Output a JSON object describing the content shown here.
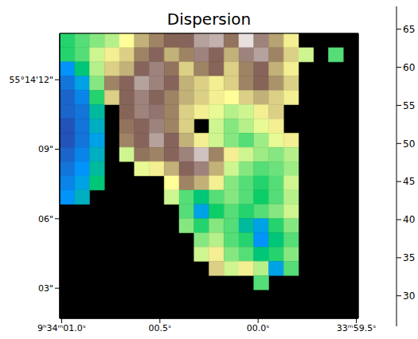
{
  "chart_data": {
    "type": "heatmap",
    "title": "Dispersion",
    "xlim": [
      1.01,
      -0.51
    ],
    "xticks": [
      {
        "value": 1.0,
        "label": "9ʰ34ᵐ01.0ˢ"
      },
      {
        "value": 0.5,
        "label": "00.5ˢ"
      },
      {
        "value": 0.0,
        "label": "00.0ˢ"
      },
      {
        "value": -0.5,
        "label": "33ᵐ59.5ˢ"
      }
    ],
    "ylim": [
      1.7,
      14.0
    ],
    "yticks": [
      {
        "value": 12,
        "label": "55°14'12\""
      },
      {
        "value": 9,
        "label": "09\""
      },
      {
        "value": 6,
        "label": "06\""
      },
      {
        "value": 3,
        "label": "03\""
      }
    ],
    "cells": [
      [
        38,
        40,
        42,
        44,
        47,
        52,
        55,
        57,
        58,
        62,
        63,
        56,
        66,
        60,
        53,
        48,
        null,
        null,
        null,
        null
      ],
      [
        38,
        40,
        45,
        48,
        50,
        55,
        58,
        52,
        55,
        60,
        58,
        52,
        60,
        62,
        55,
        50,
        45,
        null,
        40,
        null
      ],
      [
        32,
        36,
        44,
        50,
        52,
        58,
        60,
        56,
        50,
        55,
        57,
        50,
        55,
        58,
        52,
        48,
        null,
        null,
        null,
        null
      ],
      [
        30,
        33,
        42,
        55,
        58,
        62,
        60,
        58,
        52,
        50,
        48,
        50,
        55,
        57,
        54,
        50,
        null,
        null,
        null,
        null
      ],
      [
        29,
        31,
        38,
        50,
        58,
        60,
        58,
        55,
        52,
        50,
        48,
        47,
        50,
        52,
        50,
        48,
        null,
        null,
        null,
        null
      ],
      [
        29,
        30,
        35,
        null,
        57,
        60,
        59,
        55,
        50,
        48,
        46,
        44,
        45,
        48,
        50,
        null,
        null,
        null,
        null,
        null
      ],
      [
        28,
        30,
        34,
        null,
        56,
        58,
        60,
        55,
        50,
        null,
        45,
        42,
        44,
        46,
        48,
        null,
        null,
        null,
        null,
        null
      ],
      [
        28,
        30,
        33,
        null,
        55,
        58,
        62,
        58,
        52,
        48,
        45,
        42,
        40,
        43,
        46,
        48,
        null,
        null,
        null,
        null
      ],
      [
        29,
        31,
        34,
        null,
        45,
        56,
        55,
        58,
        60,
        64,
        55,
        48,
        45,
        43,
        42,
        44,
        null,
        null,
        null,
        null
      ],
      [
        30,
        32,
        35,
        null,
        null,
        46,
        48,
        52,
        58,
        60,
        52,
        45,
        42,
        40,
        41,
        43,
        null,
        null,
        null,
        null
      ],
      [
        31,
        33,
        36,
        null,
        null,
        null,
        null,
        47,
        55,
        52,
        48,
        42,
        40,
        38,
        40,
        45,
        null,
        null,
        null,
        null
      ],
      [
        32,
        34,
        null,
        null,
        null,
        null,
        null,
        45,
        40,
        36,
        40,
        42,
        40,
        37,
        40,
        44,
        null,
        null,
        null,
        null
      ],
      [
        null,
        null,
        null,
        null,
        null,
        null,
        null,
        null,
        40,
        33,
        37,
        40,
        38,
        40,
        42,
        45,
        null,
        null,
        null,
        null
      ],
      [
        null,
        null,
        null,
        null,
        null,
        null,
        null,
        null,
        42,
        38,
        42,
        40,
        35,
        33,
        38,
        42,
        null,
        null,
        null,
        null
      ],
      [
        null,
        null,
        null,
        null,
        null,
        null,
        null,
        null,
        null,
        42,
        44,
        40,
        38,
        32,
        36,
        40,
        null,
        null,
        null,
        null
      ],
      [
        null,
        null,
        null,
        null,
        null,
        null,
        null,
        null,
        null,
        45,
        48,
        42,
        40,
        36,
        38,
        42,
        null,
        null,
        null,
        null
      ],
      [
        null,
        null,
        null,
        null,
        null,
        null,
        null,
        null,
        null,
        null,
        50,
        45,
        48,
        44,
        33,
        40,
        null,
        null,
        null,
        null
      ],
      [
        null,
        null,
        null,
        null,
        null,
        null,
        null,
        null,
        null,
        null,
        null,
        null,
        null,
        40,
        null,
        null,
        null,
        null,
        null,
        null
      ],
      [
        null,
        null,
        null,
        null,
        null,
        null,
        null,
        null,
        null,
        null,
        null,
        null,
        null,
        null,
        null,
        null,
        null,
        null,
        null,
        null
      ],
      [
        null,
        null,
        null,
        null,
        null,
        null,
        null,
        null,
        null,
        null,
        null,
        null,
        null,
        null,
        null,
        null,
        null,
        null,
        null,
        null
      ]
    ],
    "colorbar_range": [
      26,
      68
    ],
    "colorbar_ticks": [
      30,
      35,
      40,
      45,
      50,
      55,
      60,
      65
    ]
  }
}
